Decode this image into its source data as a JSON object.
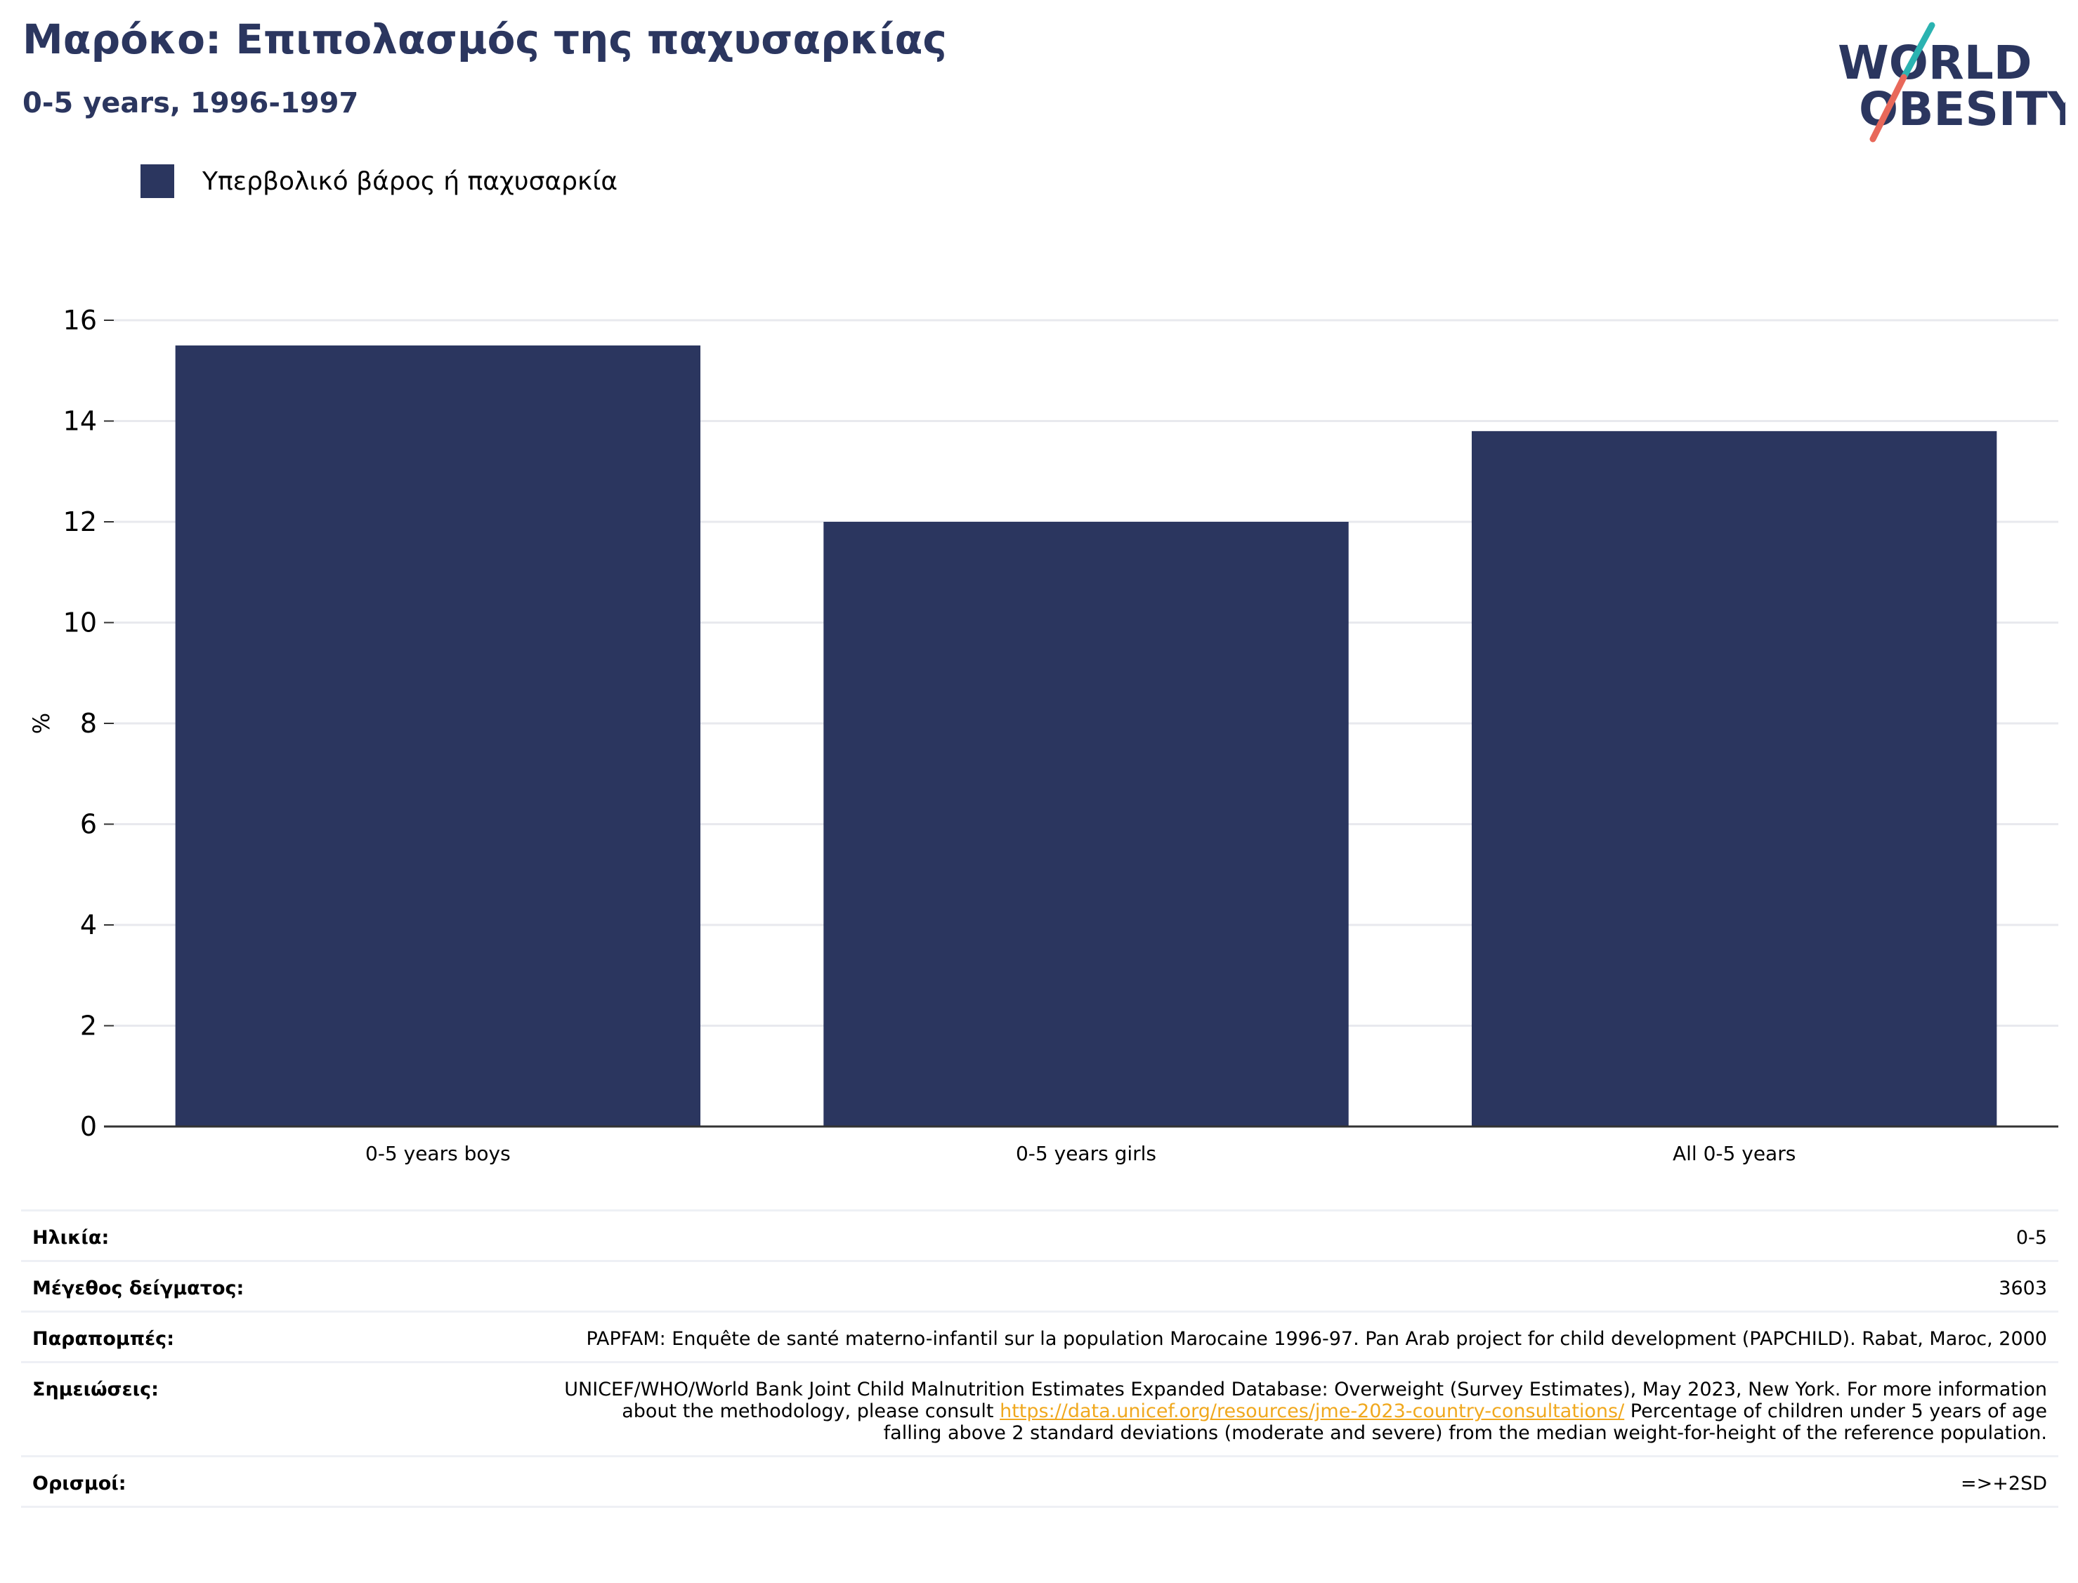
{
  "header": {
    "title": "Μαρόκο: Επιπολασμός της παχυσαρκίας",
    "subtitle": "0-5 years, 1996-1997"
  },
  "logo": {
    "line1": "WORLD",
    "line2": "OBESITY",
    "colors": {
      "text": "#2b365f",
      "slash_top": "#2bb3b1",
      "slash_bottom": "#e8685a"
    }
  },
  "legend": {
    "items": [
      {
        "label": "Υπερβολικό βάρος ή παχυσαρκία",
        "color": "#2b365f"
      }
    ]
  },
  "chart_data": {
    "type": "bar",
    "categories": [
      "0-5 years boys",
      "0-5 years girls",
      "All 0-5 years"
    ],
    "series": [
      {
        "name": "Υπερβολικό βάρος ή παχυσαρκία",
        "values": [
          15.5,
          12.0,
          13.8
        ]
      }
    ],
    "ylabel": "%",
    "ylim": [
      0,
      16
    ],
    "yticks": [
      0,
      2,
      4,
      6,
      8,
      10,
      12,
      14,
      16
    ],
    "grid": true,
    "legend_position": "top-left",
    "bar_color": "#2b365f"
  },
  "info": {
    "age_label": "Ηλικία:",
    "age_value": "0-5",
    "sample_label": "Μέγεθος δείγματος:",
    "sample_value": "3603",
    "refs_label": "Παραπομπές:",
    "refs_value": "PAPFAM: Enquête de santé materno-infantil sur la population Marocaine 1996-97. Pan Arab project for child development (PAPCHILD). Rabat, Maroc, 2000",
    "notes_label": "Σημειώσεις:",
    "notes_before": "UNICEF/WHO/World Bank Joint Child Malnutrition Estimates Expanded Database: Overweight (Survey Estimates), May 2023, New York. For more information about the methodology, please consult ",
    "notes_link": "https://data.unicef.org/resources/jme-2023-country-consultations/",
    "notes_after": " Percentage of children under 5 years of age falling above 2 standard deviations (moderate and severe) from the median weight-for-height of the reference population.",
    "defs_label": "Ορισμοί:",
    "defs_value": "=>+2SD"
  }
}
